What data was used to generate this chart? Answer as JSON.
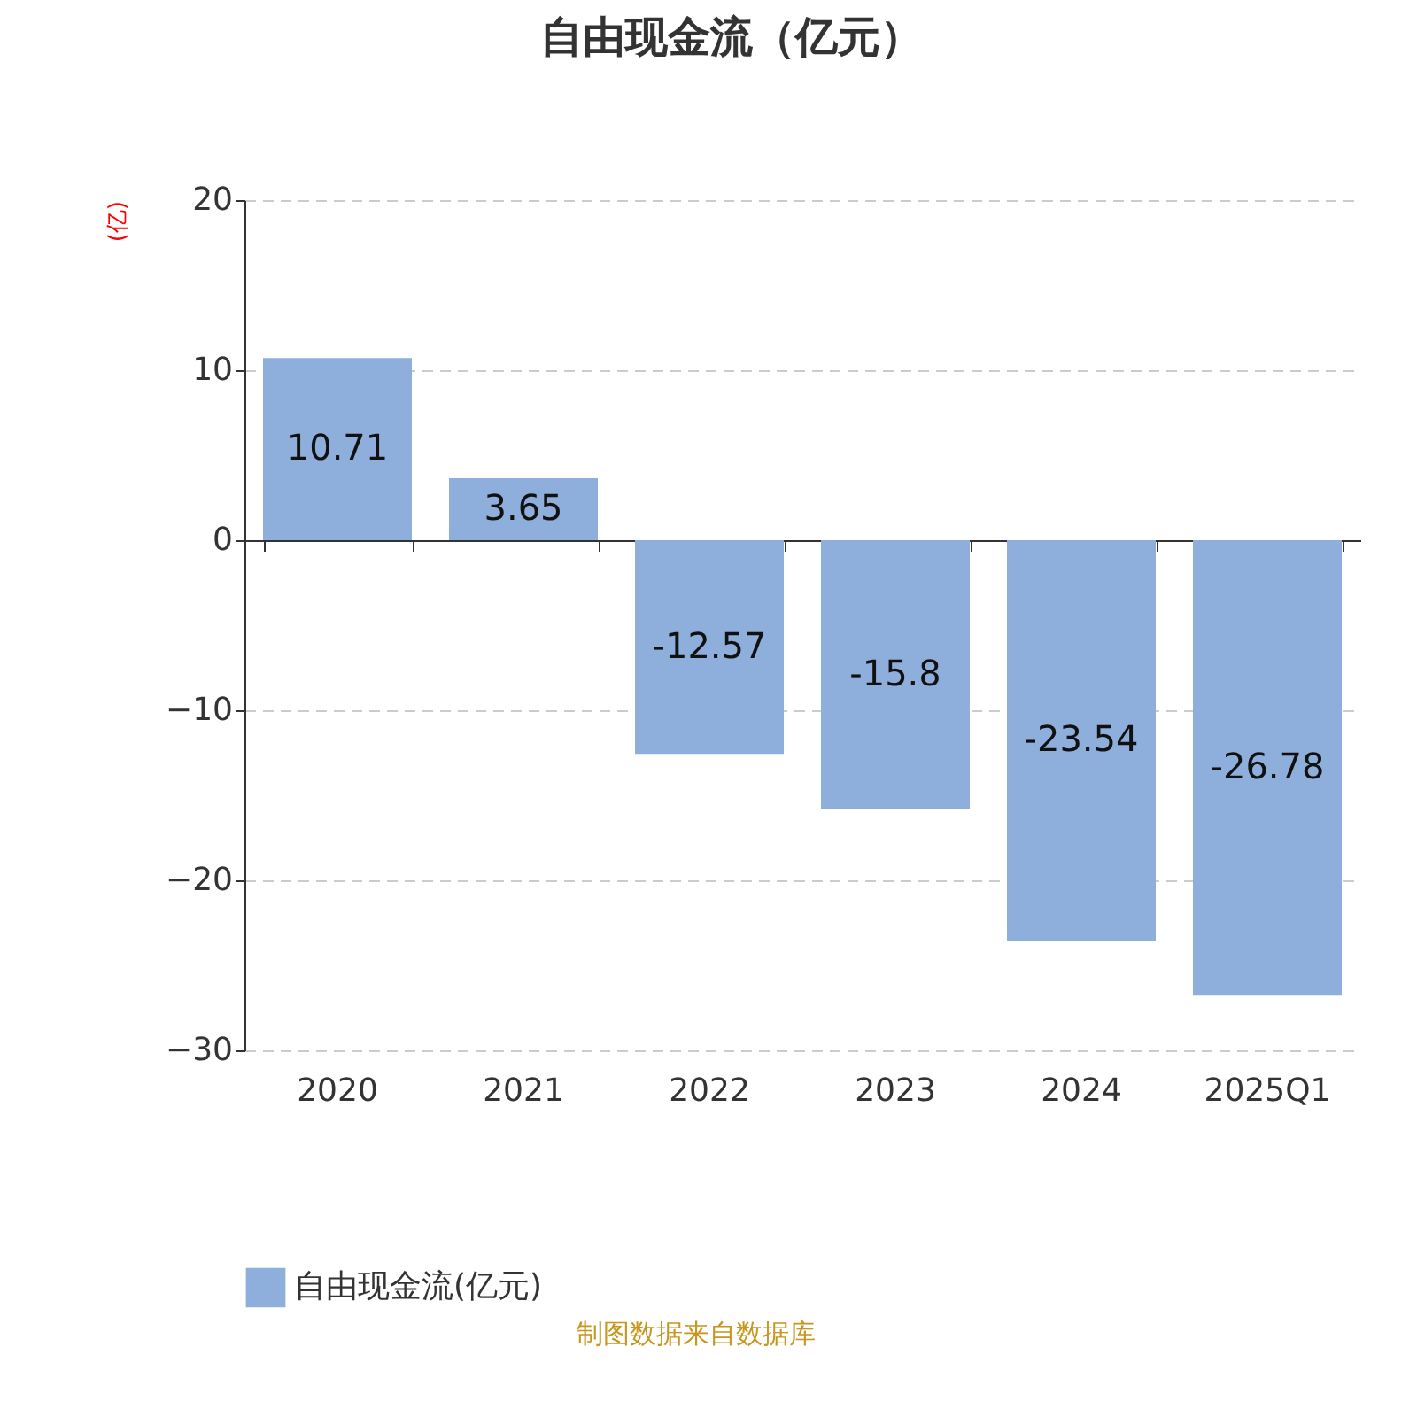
{
  "chart_data": {
    "type": "bar",
    "title": "自由现金流（亿元）",
    "ylabel": "(亿)",
    "categories": [
      "2020",
      "2021",
      "2022",
      "2023",
      "2024",
      "2025Q1"
    ],
    "series": [
      {
        "name": "自由现金流(亿元)",
        "color": "#8eaedb",
        "values": [
          10.71,
          3.65,
          -12.57,
          -15.8,
          -23.54,
          -26.78
        ]
      }
    ],
    "ylim": [
      -30,
      20
    ],
    "yticks": [
      -30,
      -20,
      -10,
      0,
      10,
      20
    ],
    "grid": "y",
    "data_labels": true,
    "legend": "bottom",
    "annotations": [
      "制图数据来自数据库"
    ]
  }
}
